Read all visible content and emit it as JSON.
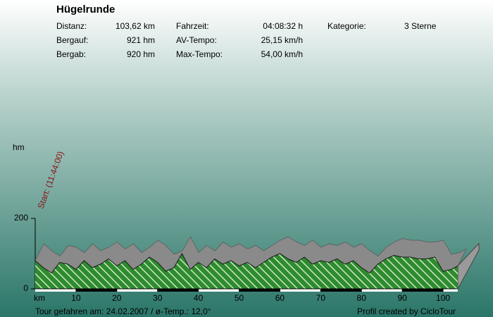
{
  "chart_data": {
    "type": "area",
    "title": "Hügelrunde",
    "stats": [
      {
        "label": "Distanz:",
        "value": "103,62 km"
      },
      {
        "label": "Bergauf:",
        "value": "921 hm"
      },
      {
        "label": "Bergab:",
        "value": "920 hm"
      },
      {
        "label": "Fahrzeit:",
        "value": "04:08:32 h"
      },
      {
        "label": "AV-Tempo:",
        "value": "25,15 km/h"
      },
      {
        "label": "Max-Tempo:",
        "value": "54,00 km/h"
      },
      {
        "label": "Kategorie:",
        "value": "3 Sterne"
      }
    ],
    "y_label": "hm",
    "x_label": "km",
    "start_label": "Start: (11:44:00)",
    "footer_left": "Tour gefahren am: 24.02.2007  /  ø-Temp.: 12,0°",
    "footer_right": "Profil created by CicloTour",
    "x": [
      0,
      2,
      4,
      6,
      8,
      10,
      12,
      14,
      16,
      18,
      20,
      22,
      24,
      26,
      28,
      30,
      32,
      34,
      36,
      38,
      40,
      42,
      44,
      46,
      48,
      50,
      52,
      54,
      56,
      58,
      60,
      62,
      64,
      66,
      68,
      70,
      72,
      74,
      76,
      78,
      80,
      82,
      84,
      86,
      88,
      90,
      92,
      94,
      96,
      98,
      100,
      102,
      103.62
    ],
    "values": [
      80,
      60,
      45,
      75,
      70,
      55,
      80,
      60,
      70,
      85,
      65,
      80,
      55,
      70,
      90,
      75,
      50,
      60,
      100,
      55,
      75,
      60,
      85,
      70,
      80,
      65,
      75,
      60,
      75,
      90,
      100,
      85,
      75,
      90,
      70,
      80,
      75,
      85,
      70,
      80,
      60,
      45,
      70,
      85,
      95,
      90,
      90,
      85,
      85,
      90,
      50,
      55,
      65
    ],
    "color": "#2e8b2e",
    "xlim": [
      0,
      103.62
    ],
    "xticks": [
      10,
      20,
      30,
      40,
      50,
      60,
      70,
      80,
      90,
      100
    ],
    "ylim": [
      0,
      200
    ],
    "yticks": [
      0,
      200
    ]
  }
}
